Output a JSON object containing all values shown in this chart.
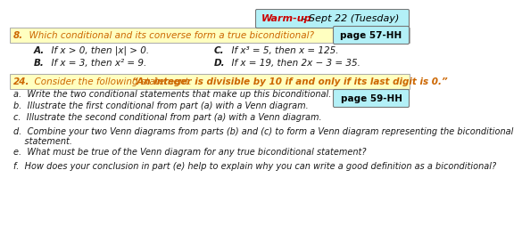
{
  "bg_color": "#ffffff",
  "warmup_box_color": "#b3f0f7",
  "warmup_text": "Warm-up",
  "warmup_date": " - Sept 22 (Tuesday)",
  "warmup_text_color": "#cc0000",
  "warmup_date_color": "#000000",
  "q8_box_color": "#ffffc0",
  "q8_label": "8.",
  "q8_text": "  Which conditional and its converse form a true biconditional?",
  "page57_box_color": "#b3f0f7",
  "page57_text": "page 57-HH",
  "q8_A": "  If x > 0, then |x| > 0.",
  "q8_C": "  If x³ = 5, then x = 125.",
  "q8_B": "  If x = 3, then x² = 9.",
  "q8_D": "  If x = 19, then 2x − 3 = 35.",
  "q24_box_color": "#ffffc0",
  "q24_label": "24.",
  "q24_text": "  Consider the following statement.",
  "q24_quoted": "“An integer is divisible by 10 if and only if its last digit is 0.”",
  "page59_box_color": "#b3f0f7",
  "page59_text": "page 59-HH",
  "sub_a": "a.  Write the two conditional statements that make up this biconditional.",
  "sub_b": "b.  Illustrate the first conditional from part (a) with a Venn diagram.",
  "sub_c": "c.  Illustrate the second conditional from part (a) with a Venn diagram.",
  "sub_d": "d.  Combine your two Venn diagrams from parts (b) and (c) to form a Venn diagram representing the biconditional",
  "sub_d2": "    statement.",
  "sub_e": "e.  What must be true of the Venn diagram for any true biconditional statement?",
  "sub_f": "f.  How does your conclusion in part (e) help to explain why you can write a good definition as a biconditional?",
  "label_color": "#cc6600",
  "body_color": "#1a1a1a",
  "edge_color": "#aaaaaa",
  "label_fs": 7.5,
  "body_fs": 7.0,
  "warmup_fs": 8.0
}
